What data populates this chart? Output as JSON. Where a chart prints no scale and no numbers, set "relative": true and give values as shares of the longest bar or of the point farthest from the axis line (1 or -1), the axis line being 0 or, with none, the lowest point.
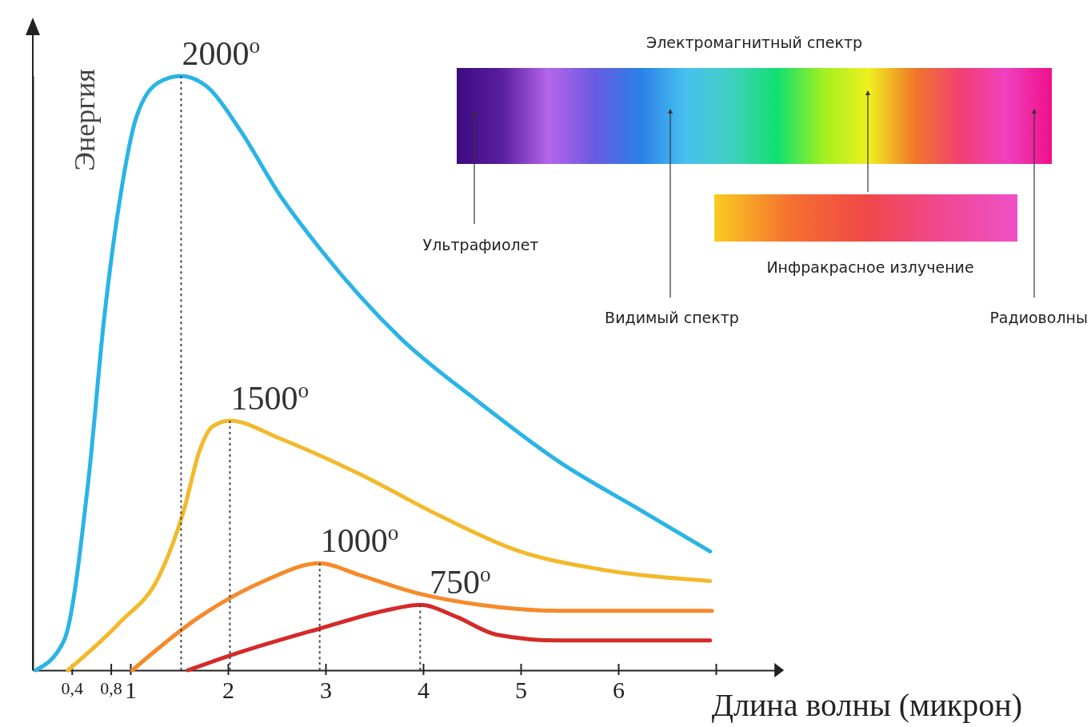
{
  "chart_data": {
    "type": "line",
    "relative": true,
    "xlabel": "Длина волны (микрон)",
    "ylabel": "Энергия",
    "xlim": [
      0,
      7.6
    ],
    "xticks": [
      {
        "value": 0.4,
        "label": "0,4"
      },
      {
        "value": 0.8,
        "label": "0,8"
      },
      1,
      2,
      3,
      4,
      5,
      6,
      {
        "value": 7,
        "label": null
      }
    ],
    "series": [
      {
        "color": "#2ab4e6",
        "x": [
          0.03,
          0.32,
          0.57,
          0.73,
          0.89,
          1.06,
          1.3,
          1.52,
          1.8,
          2.12,
          2.53,
          2.94,
          3.35,
          3.76,
          4.58,
          5.4,
          6.22,
          6.94
        ],
        "values": [
          0,
          0.05,
          0.32,
          0.59,
          0.79,
          0.93,
          0.99,
          1,
          0.98,
          0.91,
          0.8,
          0.71,
          0.63,
          0.56,
          0.45,
          0.35,
          0.27,
          0.2
        ]
      },
      {
        "color": "#f2b92c",
        "x": [
          0.36,
          0.89,
          1.3,
          1.55,
          1.71,
          1.84,
          2.02,
          2.53,
          3.35,
          4.17,
          4.99,
          5.81,
          6.94
        ],
        "values": [
          0,
          0.08,
          0.16,
          0.27,
          0.37,
          0.41,
          0.42,
          0.39,
          0.33,
          0.26,
          0.2,
          0.17,
          0.15
        ]
      },
      {
        "color": "#f68a2a",
        "x": [
          1.02,
          1.71,
          2.37,
          2.94,
          3.35,
          3.93,
          4.58,
          5.4,
          6.96
        ],
        "values": [
          0,
          0.09,
          0.15,
          0.18,
          0.16,
          0.13,
          0.11,
          0.1,
          0.1
        ]
      },
      {
        "color": "#d42a2a",
        "x": [
          1.59,
          2.12,
          2.94,
          3.6,
          3.97,
          4.34,
          4.75,
          5.4,
          6.94
        ],
        "values": [
          0,
          0.03,
          0.07,
          0.1,
          0.11,
          0.09,
          0.06,
          0.05,
          0.05
        ]
      },
      {
        "color": "#444444",
        "line_style": "dotted",
        "x": [
          1.52,
          1.52
        ],
        "values": [
          0,
          1
        ]
      },
      {
        "color": "#444444",
        "line_style": "dotted",
        "x": [
          2.02,
          2.02
        ],
        "values": [
          0,
          0.42
        ]
      },
      {
        "color": "#444444",
        "line_style": "dotted",
        "x": [
          2.94,
          2.94
        ],
        "values": [
          0,
          0.18
        ]
      },
      {
        "color": "#444444",
        "line_style": "dotted",
        "x": [
          3.97,
          3.97
        ],
        "values": [
          0,
          0.11
        ]
      }
    ],
    "annotations": [
      {
        "text": "2000$^{o}$",
        "x": 1.52,
        "y": 1
      },
      {
        "text": "1500$^{o}$",
        "x": 2.02,
        "y": 0.42
      },
      {
        "text": "1000$^{o}$",
        "x": 2.94,
        "y": 0.18
      },
      {
        "text": "750$^{o}$",
        "x": 3.97,
        "y": 0.11
      },
      "Электромагнитный спектр",
      "Ультрафиолет",
      "Видимый спектр",
      "Инфракрасное излучение",
      "Радиоволны"
    ]
  }
}
